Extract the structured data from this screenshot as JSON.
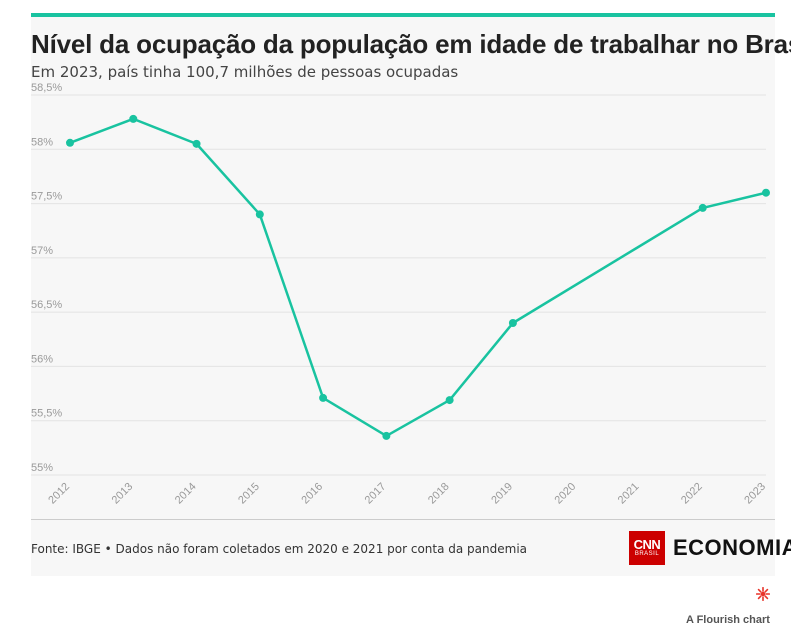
{
  "header": {
    "title": "Nível da ocupação da população em idade de trabalhar no Brasil",
    "subtitle": "Em 2023, país tinha 100,7 milhões de pessoas ocupadas"
  },
  "footer": {
    "source": "Fonte: IBGE • Dados não foram coletados em 2020 e 2021 por conta da pandemia",
    "logo_cnn": "CNN",
    "logo_cnn_sub": "BRASIL",
    "logo_section": "ECONOMIA",
    "credit": "A Flourish chart"
  },
  "colors": {
    "line": "#19c3a0",
    "accent": "#19c3a0",
    "grid": "#e3e3e3",
    "tick_label": "#9a9a9a",
    "cnn_red": "#cc0000",
    "flourish_icon": "#e8342a"
  },
  "chart_data": {
    "type": "line",
    "title": "Nível da ocupação da população em idade de trabalhar no Brasil",
    "subtitle": "Em 2023, país tinha 100,7 milhões de pessoas ocupadas",
    "xlabel": "",
    "ylabel": "",
    "x": [
      "2012",
      "2013",
      "2014",
      "2015",
      "2016",
      "2017",
      "2018",
      "2019",
      "2020",
      "2021",
      "2022",
      "2023"
    ],
    "series": [
      {
        "values": [
          58.06,
          58.28,
          58.05,
          57.4,
          55.71,
          55.36,
          55.69,
          56.4,
          null,
          null,
          57.46,
          57.6
        ]
      }
    ],
    "ylim": [
      55,
      58.5
    ],
    "yticks": [
      55,
      55.5,
      56,
      56.5,
      57,
      57.5,
      58,
      58.5
    ],
    "ytick_labels": [
      "55%",
      "55,5%",
      "56%",
      "56,5%",
      "57%",
      "57,5%",
      "58%",
      "58,5%"
    ],
    "grid": true,
    "legend": "none",
    "gaps_connected": true
  }
}
